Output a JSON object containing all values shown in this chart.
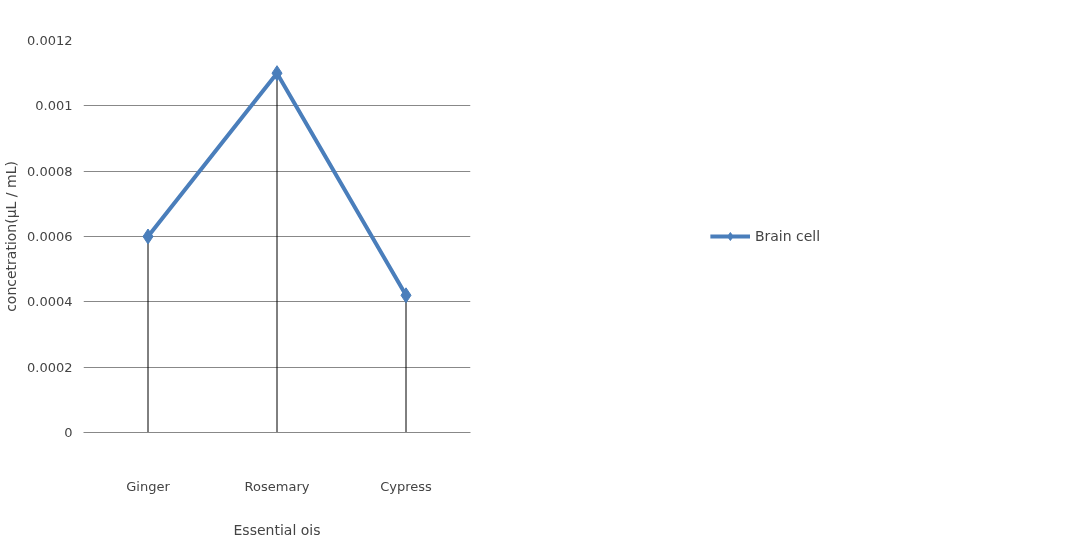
{
  "chart_data": {
    "type": "line",
    "xlabel": "Essential ois",
    "ylabel": "concetration(μL / mL)",
    "categories": [
      "Ginger",
      "Rosemary",
      "Cypress"
    ],
    "series": [
      {
        "name": "Brain cell",
        "color": "#4a7ebb",
        "values": [
          0.0006,
          0.0011,
          0.00042
        ],
        "errors": [
          [
            0,
            0.0006
          ],
          [
            0,
            0.0011
          ],
          [
            0,
            0.00042
          ]
        ]
      }
    ],
    "ylim": [
      0,
      0.0012
    ],
    "yticks": [
      0,
      0.0002,
      0.0004,
      0.0006,
      0.0008,
      0.001,
      0.0012
    ],
    "grid": "y",
    "legend": "right",
    "marker": "diamond",
    "line_style": "solid"
  }
}
